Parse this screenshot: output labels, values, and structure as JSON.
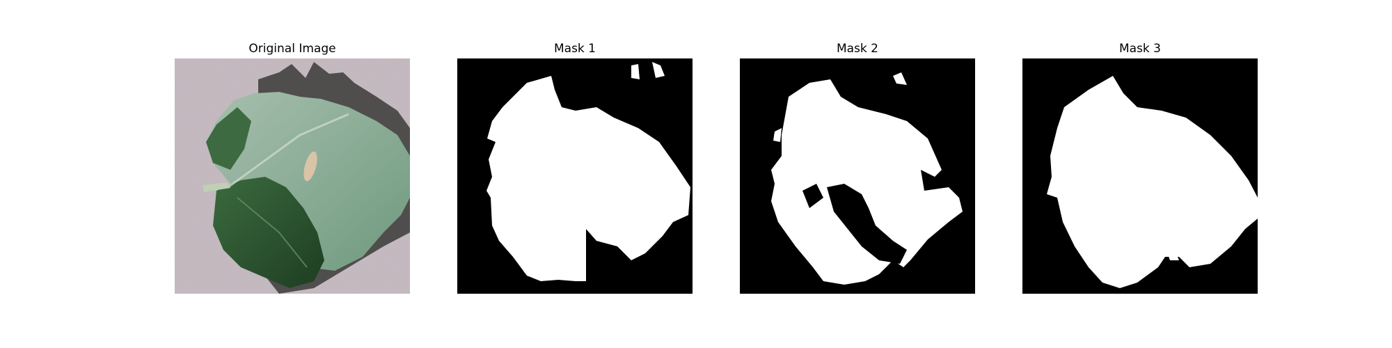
{
  "figure": {
    "panels": [
      {
        "title": "Original Image",
        "content": "leaf photograph"
      },
      {
        "title": "Mask 1",
        "content": "binary segmentation mask"
      },
      {
        "title": "Mask 2",
        "content": "binary segmentation mask"
      },
      {
        "title": "Mask 3",
        "content": "binary segmentation mask"
      }
    ]
  },
  "colors": {
    "mask_background": "#000000",
    "mask_foreground": "#ffffff",
    "photo_background": "#bdb1b9",
    "leaf_light": "#8fae9a",
    "leaf_dark": "#2f5a34",
    "shadow": "#3a3a36"
  }
}
